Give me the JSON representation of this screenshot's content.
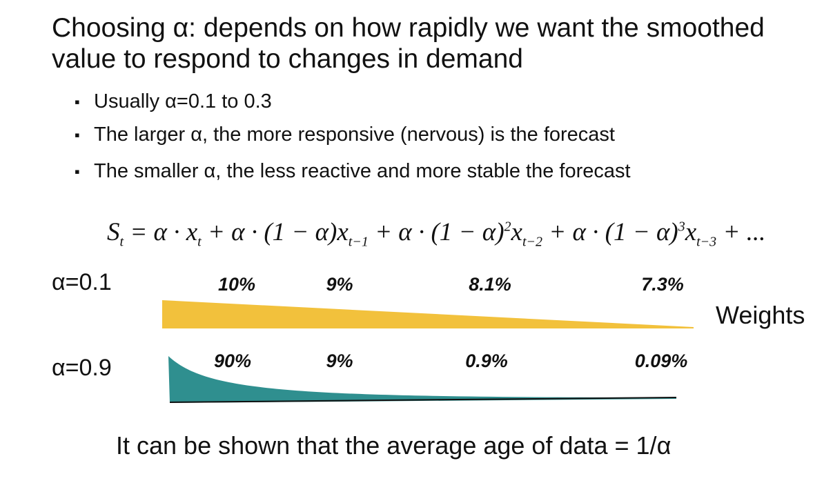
{
  "title": "Choosing α: depends on how rapidly we want the smoothed value to respond to changes in demand",
  "bullets": [
    "Usually α=0.1 to 0.3",
    "The larger α, the more responsive (nervous) is the forecast",
    "The smaller α, the less reactive and more stable the forecast"
  ],
  "formula": [
    {
      "text": "S",
      "sub": "t"
    },
    {
      "text": " = α · x",
      "sub": "t"
    },
    {
      "text": " + α · (1 − α)x",
      "sub": "t−1"
    },
    {
      "text": " + α · (1 − α)",
      "sup": "2"
    },
    {
      "text": "x",
      "sub": "t−2"
    },
    {
      "text": " + α · (1 − α)",
      "sup": "3"
    },
    {
      "text": "x",
      "sub": "t−3"
    },
    {
      "text": " + ..."
    }
  ],
  "rows": [
    {
      "label": "α=0.1",
      "weights": [
        "10%",
        "9%",
        "8.1%",
        "7.3%"
      ]
    },
    {
      "label": "α=0.9",
      "weights": [
        "90%",
        "9%",
        "0.9%",
        "0.09%"
      ]
    }
  ],
  "weights_label": "Weights",
  "footer": "It can be shown that the average age of data = 1/α"
}
